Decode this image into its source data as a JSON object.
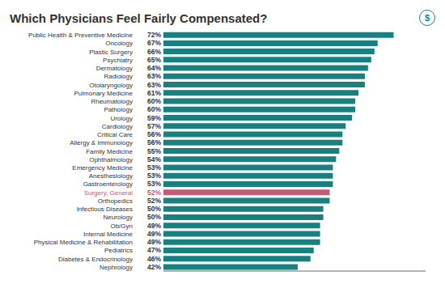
{
  "chart_data": {
    "type": "bar",
    "orientation": "horizontal",
    "title": "Which Physicians Feel Fairly Compensated?",
    "annotations": [
      "$"
    ],
    "categories": [
      "Public Health & Preventive Medicine",
      "Oncology",
      "Plastic Surgery",
      "Psychiatry",
      "Dermatology",
      "Radiology",
      "Otolaryngology",
      "Pulmonary Medicine",
      "Rheumatology",
      "Pathology",
      "Urology",
      "Cardiology",
      "Critical Care",
      "Allergy & Immunology",
      "Family Medicine",
      "Ophthalmology",
      "Emergency Medicine",
      "Anesthesiology",
      "Gastroenterology",
      "Surgery, General",
      "Orthopedics",
      "Infectious Diseases",
      "Neurology",
      "Ob/Gyn",
      "Internal Medicine",
      "Physical Medicine & Rehabilitation",
      "Pediatrics",
      "Diabetes & Endocrinology",
      "Nephrology"
    ],
    "values": [
      72,
      67,
      66,
      65,
      64,
      63,
      63,
      61,
      60,
      60,
      59,
      57,
      56,
      56,
      55,
      54,
      53,
      53,
      53,
      52,
      52,
      50,
      50,
      49,
      49,
      49,
      47,
      46,
      42
    ],
    "value_labels": [
      "72%",
      "67%",
      "66%",
      "65%",
      "64%",
      "63%",
      "63%",
      "61%",
      "60%",
      "60%",
      "59%",
      "57%",
      "56%",
      "56%",
      "55%",
      "54%",
      "53%",
      "53%",
      "53%",
      "52%",
      "52%",
      "50%",
      "50%",
      "49%",
      "49%",
      "49%",
      "47%",
      "46%",
      "42%"
    ],
    "data_labels": true,
    "colors": [
      "#1a7f7f",
      "#1a7f7f",
      "#1a7f7f",
      "#1a7f7f",
      "#1a7f7f",
      "#1a7f7f",
      "#1a7f7f",
      "#1a7f7f",
      "#1a7f7f",
      "#1a7f7f",
      "#1a7f7f",
      "#1a7f7f",
      "#1a7f7f",
      "#1a7f7f",
      "#1a7f7f",
      "#1a7f7f",
      "#1a7f7f",
      "#1a7f7f",
      "#1a7f7f",
      "#c05c75",
      "#1a7f7f",
      "#1a7f7f",
      "#1a7f7f",
      "#1a7f7f",
      "#1a7f7f",
      "#1a7f7f",
      "#1a7f7f",
      "#1a7f7f",
      "#1a7f7f"
    ],
    "xlim": [
      0,
      82
    ],
    "tick_labels": "y",
    "grid": false
  }
}
